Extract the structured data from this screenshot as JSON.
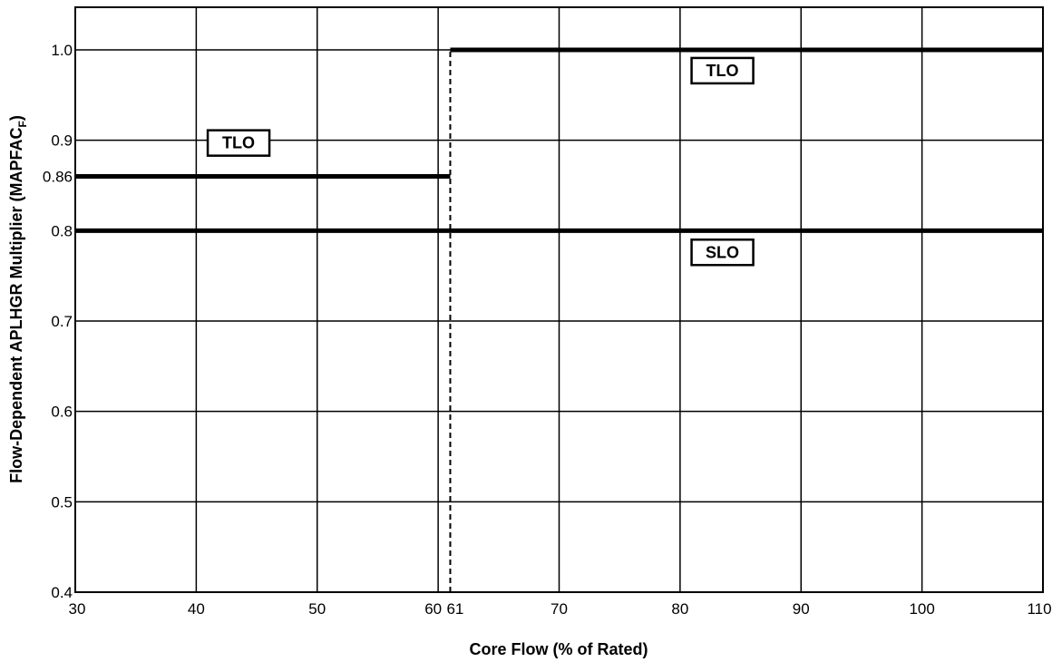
{
  "chart_data": {
    "type": "line",
    "xlabel": "Core Flow (% of Rated)",
    "ylabel": "Flow-Dependent APLHGR Multiplier (MAPFAC",
    "ylabel_subscript": "F",
    "ylabel_suffix": ")",
    "xlim": [
      30,
      110
    ],
    "ylim": [
      0.4,
      1.05
    ],
    "grid": true,
    "x_ticks": [
      {
        "value": 30,
        "label": "30"
      },
      {
        "value": 40,
        "label": "40"
      },
      {
        "value": 50,
        "label": "50"
      },
      {
        "value": 60,
        "label": "60"
      },
      {
        "value": 61,
        "label": "61"
      },
      {
        "value": 70,
        "label": "70"
      },
      {
        "value": 80,
        "label": "80"
      },
      {
        "value": 90,
        "label": "90"
      },
      {
        "value": 100,
        "label": "100"
      },
      {
        "value": 110,
        "label": "110"
      }
    ],
    "y_ticks": [
      {
        "value": 0.4,
        "label": "0.4"
      },
      {
        "value": 0.5,
        "label": "0.5"
      },
      {
        "value": 0.6,
        "label": "0.6"
      },
      {
        "value": 0.7,
        "label": "0.7"
      },
      {
        "value": 0.8,
        "label": "0.8"
      },
      {
        "value": 0.86,
        "label": "0.86"
      },
      {
        "value": 0.9,
        "label": "0.9"
      },
      {
        "value": 1.0,
        "label": "1.0"
      }
    ],
    "x_gridlines": [
      40,
      50,
      60,
      70,
      80,
      90,
      100
    ],
    "y_gridlines": [
      0.5,
      0.6,
      0.7,
      0.8,
      0.9,
      1.0
    ],
    "series": [
      {
        "name": "TLO",
        "style": "solid",
        "segments": [
          {
            "x": [
              30,
              61
            ],
            "y": [
              0.86,
              0.86
            ]
          },
          {
            "x": [
              61,
              110
            ],
            "y": [
              1.0,
              1.0
            ]
          }
        ]
      },
      {
        "name": "SLO",
        "style": "solid",
        "segments": [
          {
            "x": [
              30,
              110
            ],
            "y": [
              0.8,
              0.8
            ]
          }
        ]
      }
    ],
    "reference_lines": [
      {
        "style": "dashed",
        "x": [
          61,
          61
        ],
        "y": [
          0.4,
          1.0
        ]
      }
    ],
    "annotations": [
      {
        "text": "TLO",
        "x": 83.5,
        "y": 0.977
      },
      {
        "text": "TLO",
        "x": 43.5,
        "y": 0.897
      },
      {
        "text": "SLO",
        "x": 83.5,
        "y": 0.776
      }
    ]
  }
}
